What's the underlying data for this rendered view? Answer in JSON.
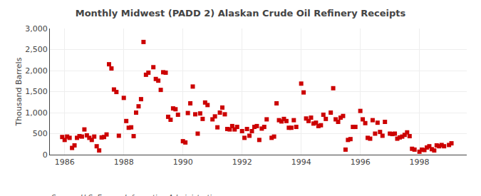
{
  "chart_data": {
    "type": "scatter",
    "title": "Monthly Midwest (PADD 2) Alaskan Crude Oil Refinery Receipts",
    "ylabel": "Thousand Barrels",
    "source": "Source: U.S. Energy Information Administration",
    "color": "#CC0000",
    "marker": "square",
    "grid": true,
    "xlim": [
      1985.5,
      1999.6
    ],
    "xticks": [
      1986,
      1988,
      1990,
      1992,
      1994,
      1996,
      1998
    ],
    "ylim": [
      0,
      3000
    ],
    "yticks": [
      0,
      500,
      {
        "value": 1000,
        "label": "1,000"
      },
      {
        "value": 1500,
        "label": "1,500"
      },
      {
        "value": 2000,
        "label": "2,000"
      },
      {
        "value": 2500,
        "label": "2,500"
      },
      {
        "value": 3000,
        "label": "3,000"
      }
    ],
    "x": [
      1985.917,
      1986.0,
      1986.083,
      1986.167,
      1986.25,
      1986.333,
      1986.417,
      1986.5,
      1986.583,
      1986.667,
      1986.75,
      1986.833,
      1986.917,
      1987.0,
      1987.083,
      1987.167,
      1987.25,
      1987.333,
      1987.417,
      1987.5,
      1987.583,
      1987.667,
      1987.75,
      1987.833,
      1988.0,
      1988.083,
      1988.167,
      1988.25,
      1988.333,
      1988.417,
      1988.5,
      1988.583,
      1988.667,
      1988.75,
      1988.833,
      1989.0,
      1989.083,
      1989.167,
      1989.25,
      1989.333,
      1989.417,
      1989.5,
      1989.583,
      1989.667,
      1989.75,
      1989.833,
      1990.0,
      1990.083,
      1990.167,
      1990.25,
      1990.333,
      1990.417,
      1990.5,
      1990.583,
      1990.667,
      1990.75,
      1990.833,
      1991.0,
      1991.083,
      1991.167,
      1991.25,
      1991.333,
      1991.417,
      1991.5,
      1991.583,
      1991.667,
      1991.75,
      1991.833,
      1992.0,
      1992.083,
      1992.167,
      1992.25,
      1992.333,
      1992.417,
      1992.5,
      1992.583,
      1992.667,
      1992.75,
      1992.833,
      1993.0,
      1993.083,
      1993.167,
      1993.25,
      1993.333,
      1993.417,
      1993.5,
      1993.583,
      1993.667,
      1993.75,
      1993.833,
      1994.0,
      1994.083,
      1994.167,
      1994.25,
      1994.333,
      1994.417,
      1994.5,
      1994.583,
      1994.667,
      1994.75,
      1994.833,
      1995.0,
      1995.083,
      1995.167,
      1995.25,
      1995.333,
      1995.417,
      1995.5,
      1995.583,
      1995.667,
      1995.75,
      1995.833,
      1996.0,
      1996.083,
      1996.167,
      1996.25,
      1996.333,
      1996.417,
      1996.5,
      1996.583,
      1996.667,
      1996.75,
      1996.833,
      1997.0,
      1997.083,
      1997.167,
      1997.25,
      1997.333,
      1997.417,
      1997.5,
      1997.583,
      1997.667,
      1997.75,
      1997.833,
      1998.0,
      1998.083,
      1998.167,
      1998.25,
      1998.333,
      1998.417,
      1998.5,
      1998.583,
      1998.667,
      1998.75,
      1998.833,
      1999.0,
      1999.083
    ],
    "values": [
      420,
      350,
      430,
      400,
      160,
      220,
      400,
      440,
      430,
      600,
      460,
      400,
      350,
      430,
      200,
      100,
      410,
      420,
      480,
      2150,
      2050,
      1550,
      1490,
      450,
      1350,
      800,
      640,
      650,
      440,
      1000,
      1150,
      1320,
      2680,
      1900,
      1950,
      2080,
      1800,
      1760,
      1540,
      1960,
      1950,
      900,
      830,
      1100,
      1080,
      950,
      320,
      290,
      990,
      1220,
      1620,
      960,
      500,
      980,
      850,
      1240,
      1180,
      840,
      910,
      650,
      1000,
      1120,
      960,
      610,
      600,
      680,
      600,
      660,
      560,
      400,
      610,
      450,
      560,
      660,
      680,
      350,
      620,
      660,
      840,
      400,
      430,
      1220,
      820,
      790,
      850,
      800,
      640,
      640,
      820,
      660,
      1690,
      1480,
      860,
      800,
      880,
      740,
      760,
      680,
      700,
      950,
      850,
      1000,
      1580,
      840,
      780,
      880,
      920,
      120,
      350,
      370,
      660,
      660,
      1040,
      840,
      750,
      400,
      380,
      820,
      500,
      760,
      540,
      450,
      780,
      500,
      490,
      500,
      380,
      410,
      430,
      470,
      530,
      440,
      140,
      120,
      70,
      120,
      110,
      170,
      200,
      130,
      100,
      220,
      200,
      230,
      200,
      230,
      270
    ]
  }
}
